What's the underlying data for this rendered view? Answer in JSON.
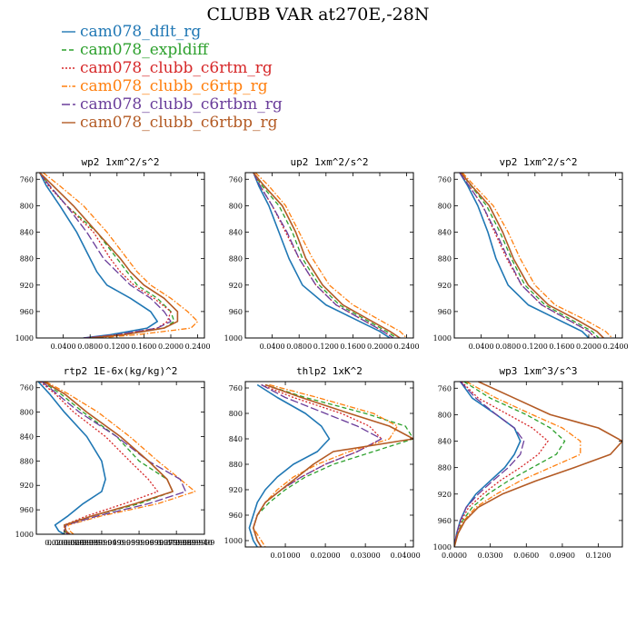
{
  "figure": {
    "title": "CLUBB VAR at270E,-28N"
  },
  "legend": [
    {
      "name": "cam078_dflt_rg",
      "color": "#1f77b4",
      "dash": "solid"
    },
    {
      "name": "cam078_expldiff",
      "color": "#2ca02c",
      "dash": "dash"
    },
    {
      "name": "cam078_clubb_c6rtm_rg",
      "color": "#d62728",
      "dash": "dot"
    },
    {
      "name": "cam078_clubb_c6rtp_rg",
      "color": "#ff7f0e",
      "dash": "dashdot"
    },
    {
      "name": "cam078_clubb_c6rtbm_rg",
      "color": "#6a3d9a",
      "dash": "longdash"
    },
    {
      "name": "cam078_clubb_c6rtbp_rg",
      "color": "#b35a24",
      "dash": "solid"
    }
  ],
  "chart_data": [
    {
      "type": "line",
      "title": "wp2   1xm^2/s^2",
      "xlim": [
        0.0,
        0.25
      ],
      "ylim": [
        1000,
        750
      ],
      "xticks": [
        0.04,
        0.08,
        0.12,
        0.16,
        0.2,
        0.24
      ],
      "xtick_labels": [
        "0.0400",
        "0.0800",
        "0.1200",
        "0.1600",
        "0.2000",
        "0.2400"
      ],
      "yticks": [
        760,
        800,
        840,
        880,
        920,
        960,
        1000
      ],
      "ytick_labels": [
        "760",
        "800",
        "840",
        "880",
        "920",
        "960",
        "1000"
      ],
      "y": [
        750,
        770,
        800,
        840,
        880,
        900,
        920,
        940,
        960,
        975,
        985,
        995,
        1000
      ],
      "series": [
        {
          "name": "cam078_dflt_rg",
          "values": [
            0.005,
            0.015,
            0.035,
            0.06,
            0.08,
            0.09,
            0.105,
            0.14,
            0.17,
            0.18,
            0.165,
            0.11,
            0.07
          ]
        },
        {
          "name": "cam078_expldiff",
          "values": [
            0.005,
            0.02,
            0.045,
            0.09,
            0.12,
            0.135,
            0.15,
            0.18,
            0.2,
            0.205,
            0.19,
            0.13,
            0.08
          ]
        },
        {
          "name": "cam078_clubb_c6rtm_rg",
          "values": [
            0.005,
            0.018,
            0.045,
            0.085,
            0.11,
            0.125,
            0.145,
            0.175,
            0.2,
            0.195,
            0.18,
            0.12,
            0.07
          ]
        },
        {
          "name": "cam078_clubb_c6rtp_rg",
          "values": [
            0.01,
            0.035,
            0.07,
            0.105,
            0.135,
            0.15,
            0.17,
            0.2,
            0.225,
            0.24,
            0.23,
            0.15,
            0.09
          ]
        },
        {
          "name": "cam078_clubb_c6rtbm_rg",
          "values": [
            0.005,
            0.02,
            0.045,
            0.075,
            0.1,
            0.12,
            0.14,
            0.17,
            0.19,
            0.2,
            0.18,
            0.12,
            0.07
          ]
        },
        {
          "name": "cam078_clubb_c6rtbp_rg",
          "values": [
            0.005,
            0.025,
            0.055,
            0.09,
            0.125,
            0.14,
            0.16,
            0.19,
            0.21,
            0.21,
            0.19,
            0.13,
            0.08
          ]
        }
      ]
    },
    {
      "type": "line",
      "title": "up2   1xm^2/s^2",
      "xlim": [
        0.0,
        0.25
      ],
      "ylim": [
        1000,
        750
      ],
      "xticks": [
        0.04,
        0.08,
        0.12,
        0.16,
        0.2,
        0.24
      ],
      "xtick_labels": [
        "0.0400",
        "0.0800",
        "0.1200",
        "0.1600",
        "0.2000",
        "0.2400"
      ],
      "yticks": [
        760,
        800,
        840,
        880,
        920,
        960,
        1000
      ],
      "ytick_labels": [
        "760",
        "800",
        "840",
        "880",
        "920",
        "960",
        "1000"
      ],
      "y": [
        750,
        770,
        800,
        840,
        880,
        920,
        950,
        970,
        990,
        1000
      ],
      "series": [
        {
          "name": "cam078_dflt_rg",
          "values": [
            0.012,
            0.02,
            0.035,
            0.05,
            0.065,
            0.085,
            0.12,
            0.16,
            0.2,
            0.215
          ]
        },
        {
          "name": "cam078_expldiff",
          "values": [
            0.012,
            0.025,
            0.05,
            0.07,
            0.085,
            0.11,
            0.14,
            0.175,
            0.21,
            0.225
          ]
        },
        {
          "name": "cam078_clubb_c6rtm_rg",
          "values": [
            0.012,
            0.022,
            0.04,
            0.06,
            0.08,
            0.105,
            0.135,
            0.17,
            0.205,
            0.22
          ]
        },
        {
          "name": "cam078_clubb_c6rtp_rg",
          "values": [
            0.015,
            0.035,
            0.06,
            0.08,
            0.1,
            0.125,
            0.16,
            0.195,
            0.23,
            0.24
          ]
        },
        {
          "name": "cam078_clubb_c6rtbm_rg",
          "values": [
            0.012,
            0.022,
            0.04,
            0.062,
            0.08,
            0.105,
            0.135,
            0.17,
            0.205,
            0.22
          ]
        },
        {
          "name": "cam078_clubb_c6rtbp_rg",
          "values": [
            0.012,
            0.028,
            0.055,
            0.075,
            0.09,
            0.115,
            0.145,
            0.18,
            0.215,
            0.23
          ]
        }
      ]
    },
    {
      "type": "line",
      "title": "vp2   1xm^2/s^2",
      "xlim": [
        0.0,
        0.25
      ],
      "ylim": [
        1000,
        750
      ],
      "xticks": [
        0.04,
        0.08,
        0.12,
        0.16,
        0.2,
        0.24
      ],
      "xtick_labels": [
        "0.0400",
        "0.0800",
        "0.1200",
        "0.1600",
        "0.2000",
        "0.2400"
      ],
      "yticks": [
        760,
        800,
        840,
        880,
        920,
        960,
        1000
      ],
      "ytick_labels": [
        "760",
        "800",
        "840",
        "880",
        "920",
        "960",
        "1000"
      ],
      "y": [
        750,
        770,
        800,
        840,
        880,
        920,
        950,
        970,
        990,
        1000
      ],
      "series": [
        {
          "name": "cam078_dflt_rg",
          "values": [
            0.008,
            0.02,
            0.035,
            0.05,
            0.062,
            0.08,
            0.11,
            0.15,
            0.19,
            0.2
          ]
        },
        {
          "name": "cam078_expldiff",
          "values": [
            0.01,
            0.025,
            0.048,
            0.068,
            0.085,
            0.105,
            0.135,
            0.17,
            0.205,
            0.215
          ]
        },
        {
          "name": "cam078_clubb_c6rtm_rg",
          "values": [
            0.008,
            0.022,
            0.042,
            0.06,
            0.078,
            0.1,
            0.13,
            0.165,
            0.2,
            0.21
          ]
        },
        {
          "name": "cam078_clubb_c6rtp_rg",
          "values": [
            0.012,
            0.03,
            0.058,
            0.08,
            0.098,
            0.12,
            0.15,
            0.19,
            0.225,
            0.235
          ]
        },
        {
          "name": "cam078_clubb_c6rtbm_rg",
          "values": [
            0.008,
            0.022,
            0.042,
            0.062,
            0.08,
            0.1,
            0.13,
            0.165,
            0.2,
            0.21
          ]
        },
        {
          "name": "cam078_clubb_c6rtbp_rg",
          "values": [
            0.01,
            0.026,
            0.052,
            0.072,
            0.088,
            0.11,
            0.14,
            0.178,
            0.212,
            0.222
          ]
        }
      ]
    },
    {
      "type": "line",
      "title": "rtp2   1E-6x(kg/kg)^2",
      "xlim": [
        0.005,
        0.095
      ],
      "ylim": [
        1000,
        750
      ],
      "xticks": [
        0.02,
        0.04,
        0.06,
        0.08
      ],
      "xtick_labels": [
        "0.0200000",
        "0.0399999",
        "0.0599999",
        "0.0799999"
      ],
      "extra_tick_labels": [
        "0.0299999",
        "0.0499999",
        "0.0699999",
        "0.0899999"
      ],
      "overlap_tick_labels": [
        "0.0000999999",
        "0.0799999940"
      ],
      "yticks": [
        760,
        800,
        840,
        880,
        920,
        960,
        1000
      ],
      "ytick_labels": [
        "760",
        "800",
        "840",
        "880",
        "920",
        "960",
        "1000"
      ],
      "y": [
        750,
        770,
        800,
        840,
        880,
        910,
        930,
        950,
        970,
        985,
        995,
        1000
      ],
      "series": [
        {
          "name": "cam078_dflt_rg",
          "values": [
            0.006,
            0.012,
            0.02,
            0.032,
            0.04,
            0.042,
            0.04,
            0.03,
            0.022,
            0.015,
            0.017,
            0.02
          ]
        },
        {
          "name": "cam078_expldiff",
          "values": [
            0.008,
            0.018,
            0.03,
            0.048,
            0.06,
            0.075,
            0.078,
            0.06,
            0.035,
            0.02,
            0.02,
            0.022
          ]
        },
        {
          "name": "cam078_clubb_c6rtm_rg",
          "values": [
            0.007,
            0.015,
            0.025,
            0.042,
            0.055,
            0.065,
            0.07,
            0.052,
            0.032,
            0.02,
            0.02,
            0.022
          ]
        },
        {
          "name": "cam078_clubb_c6rtp_rg",
          "values": [
            0.01,
            0.022,
            0.038,
            0.055,
            0.07,
            0.082,
            0.09,
            0.07,
            0.04,
            0.022,
            0.023,
            0.025
          ]
        },
        {
          "name": "cam078_clubb_c6rtbm_rg",
          "values": [
            0.008,
            0.016,
            0.028,
            0.048,
            0.065,
            0.082,
            0.085,
            0.065,
            0.038,
            0.021,
            0.02,
            0.022
          ]
        },
        {
          "name": "cam078_clubb_c6rtbp_rg",
          "values": [
            0.009,
            0.02,
            0.032,
            0.05,
            0.065,
            0.075,
            0.078,
            0.058,
            0.035,
            0.02,
            0.021,
            0.023
          ]
        }
      ]
    },
    {
      "type": "line",
      "title": "thlp2   1xK^2",
      "xlim": [
        0.0,
        0.042
      ],
      "ylim": [
        1010,
        750
      ],
      "xticks": [
        0.01,
        0.02,
        0.03,
        0.04
      ],
      "xtick_labels": [
        "0.01000",
        "0.02000",
        "0.03000",
        "0.04000"
      ],
      "yticks": [
        760,
        800,
        840,
        880,
        920,
        960,
        1000
      ],
      "ytick_labels": [
        "760",
        "800",
        "840",
        "880",
        "920",
        "960",
        "1000"
      ],
      "y": [
        755,
        775,
        800,
        820,
        840,
        860,
        880,
        900,
        920,
        940,
        960,
        980,
        1000,
        1010
      ],
      "series": [
        {
          "name": "cam078_dflt_rg",
          "values": [
            0.003,
            0.008,
            0.015,
            0.019,
            0.021,
            0.018,
            0.012,
            0.008,
            0.005,
            0.003,
            0.002,
            0.001,
            0.002,
            0.003
          ]
        },
        {
          "name": "cam078_expldiff",
          "values": [
            0.005,
            0.015,
            0.03,
            0.04,
            0.042,
            0.032,
            0.022,
            0.015,
            0.01,
            0.006,
            0.003,
            0.002,
            0.003,
            0.004
          ]
        },
        {
          "name": "cam078_clubb_c6rtm_rg",
          "values": [
            0.004,
            0.012,
            0.024,
            0.031,
            0.034,
            0.028,
            0.02,
            0.014,
            0.009,
            0.005,
            0.003,
            0.002,
            0.003,
            0.004
          ]
        },
        {
          "name": "cam078_clubb_c6rtp_rg",
          "values": [
            0.006,
            0.018,
            0.032,
            0.038,
            0.036,
            0.026,
            0.018,
            0.012,
            0.008,
            0.005,
            0.003,
            0.002,
            0.004,
            0.005
          ]
        },
        {
          "name": "cam078_clubb_c6rtbm_rg",
          "values": [
            0.004,
            0.01,
            0.02,
            0.028,
            0.034,
            0.028,
            0.02,
            0.014,
            0.009,
            0.005,
            0.003,
            0.002,
            0.003,
            0.004
          ]
        },
        {
          "name": "cam078_clubb_c6rtbp_rg",
          "values": [
            0.005,
            0.014,
            0.026,
            0.036,
            0.042,
            0.022,
            0.017,
            0.013,
            0.009,
            0.005,
            0.003,
            0.002,
            0.003,
            0.004
          ]
        }
      ]
    },
    {
      "type": "line",
      "title": "wp3   1xm^3/s^3",
      "xlim": [
        0.0,
        0.14
      ],
      "ylim": [
        1000,
        750
      ],
      "xticks": [
        0.0,
        0.03,
        0.06,
        0.09,
        0.12
      ],
      "xtick_labels": [
        "0.0000",
        "0.0300",
        "0.0600",
        "0.0900",
        "0.1200"
      ],
      "yticks": [
        760,
        800,
        840,
        880,
        920,
        960,
        1000
      ],
      "ytick_labels": [
        "760",
        "800",
        "840",
        "880",
        "920",
        "960",
        "1000"
      ],
      "y": [
        750,
        775,
        800,
        820,
        840,
        860,
        880,
        900,
        920,
        940,
        960,
        980,
        1000
      ],
      "series": [
        {
          "name": "cam078_dflt_rg",
          "values": [
            0.005,
            0.015,
            0.035,
            0.05,
            0.055,
            0.05,
            0.042,
            0.03,
            0.018,
            0.01,
            0.005,
            0.002,
            0.0
          ]
        },
        {
          "name": "cam078_expldiff",
          "values": [
            0.008,
            0.03,
            0.06,
            0.08,
            0.092,
            0.085,
            0.065,
            0.045,
            0.028,
            0.015,
            0.007,
            0.003,
            0.0
          ]
        },
        {
          "name": "cam078_clubb_c6rtm_rg",
          "values": [
            0.006,
            0.02,
            0.045,
            0.065,
            0.078,
            0.07,
            0.055,
            0.038,
            0.024,
            0.012,
            0.006,
            0.002,
            0.0
          ]
        },
        {
          "name": "cam078_clubb_c6rtp_rg",
          "values": [
            0.01,
            0.035,
            0.065,
            0.09,
            0.105,
            0.105,
            0.08,
            0.055,
            0.035,
            0.018,
            0.008,
            0.003,
            0.0
          ]
        },
        {
          "name": "cam078_clubb_c6rtbm_rg",
          "values": [
            0.005,
            0.018,
            0.035,
            0.05,
            0.058,
            0.055,
            0.045,
            0.032,
            0.02,
            0.01,
            0.005,
            0.002,
            0.0
          ]
        },
        {
          "name": "cam078_clubb_c6rtbp_rg",
          "values": [
            0.02,
            0.05,
            0.08,
            0.12,
            0.14,
            0.13,
            0.1,
            0.068,
            0.04,
            0.02,
            0.009,
            0.003,
            0.0
          ]
        }
      ]
    }
  ]
}
